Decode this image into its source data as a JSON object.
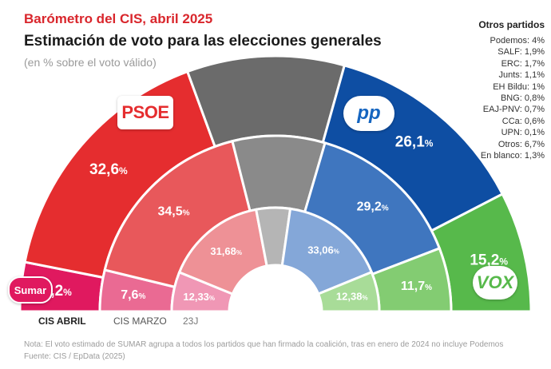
{
  "header": {
    "kicker": "Barómetro del CIS, abril 2025",
    "title": "Estimación de voto para las elecciones generales",
    "subtitle": "(en % sobre el voto válido)"
  },
  "others": {
    "title": "Otros partidos",
    "items": [
      "Podemos: 4%",
      "SALF: 1,9%",
      "ERC: 1,7%",
      "Junts: 1,1%",
      "EH Bildu: 1%",
      "BNG: 0,8%",
      "EAJ-PNV: 0,7%",
      "CCa: 0,6%",
      "UPN: 0,1%",
      "Otros: 6,7%",
      "En blanco: 1,3%"
    ]
  },
  "logos": {
    "psoe": "PSOE",
    "pp": "PP",
    "vox": "VOX",
    "sumar": "Sumar"
  },
  "chart_data": {
    "type": "semicircle-donut",
    "rings": [
      {
        "name": "CIS ABRIL",
        "segments": [
          {
            "party": "Sumar",
            "value": 6.2,
            "label": "6,2",
            "color": "#e0195f"
          },
          {
            "party": "PSOE",
            "value": 32.6,
            "label": "32,6",
            "color": "#e52d2f"
          },
          {
            "party": "Otros",
            "value": 19.9,
            "label": "",
            "color": "#6b6b6b"
          },
          {
            "party": "PP",
            "value": 26.1,
            "label": "26,1",
            "color": "#0e4ea3"
          },
          {
            "party": "Vox",
            "value": 15.2,
            "label": "15,2",
            "color": "#57b94b"
          }
        ]
      },
      {
        "name": "CIS MARZO",
        "segments": [
          {
            "party": "Sumar",
            "value": 7.6,
            "label": "7,6",
            "color": "#ea6a93"
          },
          {
            "party": "PSOE",
            "value": 34.5,
            "label": "34,5",
            "color": "#e8585b"
          },
          {
            "party": "Otros",
            "value": 17.0,
            "label": "",
            "color": "#8a8a8a"
          },
          {
            "party": "PP",
            "value": 29.2,
            "label": "29,2",
            "color": "#3f76bf"
          },
          {
            "party": "Vox",
            "value": 11.7,
            "label": "11,7",
            "color": "#83cc72"
          }
        ]
      },
      {
        "name": "23J",
        "segments": [
          {
            "party": "Sumar",
            "value": 12.33,
            "label": "12,33",
            "color": "#f097b5"
          },
          {
            "party": "PSOE",
            "value": 31.68,
            "label": "31,68",
            "color": "#ee9196"
          },
          {
            "party": "Otros",
            "value": 10.55,
            "label": "",
            "color": "#b5b5b5"
          },
          {
            "party": "PP",
            "value": 33.06,
            "label": "33,06",
            "color": "#84a7d8"
          },
          {
            "party": "Vox",
            "value": 12.38,
            "label": "12,38",
            "color": "#a8dc98"
          }
        ]
      }
    ],
    "unit": "%"
  },
  "footer": {
    "note": "Nota: El voto estimado de SUMAR agrupa a todos los partidos que han firmado la coalición, tras en enero de 2024 no incluye Podemos",
    "source": "Fuente: CIS / EpData (2025)"
  }
}
